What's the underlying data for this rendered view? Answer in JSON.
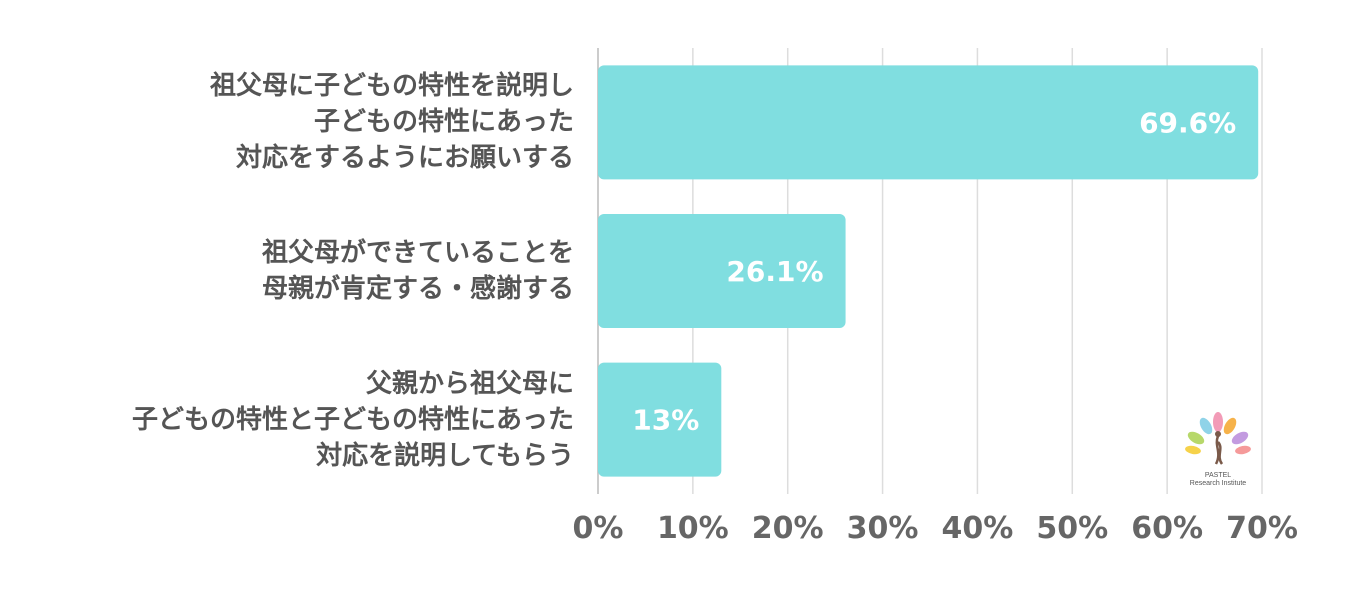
{
  "chart_data": {
    "type": "bar",
    "orientation": "horizontal",
    "categories": [
      [
        "祖父母に子どもの特性を説明し",
        "子どもの特性にあった",
        "対応をするようにお願いする"
      ],
      [
        "祖父母ができていることを",
        "母親が肯定する・感謝する"
      ],
      [
        "父親から祖父母に",
        "子どもの特性と子どもの特性にあった",
        "対応を説明してもらう"
      ]
    ],
    "values": [
      69.6,
      26.1,
      13
    ],
    "value_labels": [
      "69.6%",
      "26.1%",
      "13%"
    ],
    "xlim": [
      0,
      70
    ],
    "xticks": [
      0,
      10,
      20,
      30,
      40,
      50,
      60,
      70
    ],
    "xtick_labels": [
      "0%",
      "10%",
      "20%",
      "30%",
      "40%",
      "50%",
      "60%",
      "70%"
    ],
    "grid": true,
    "colors": {
      "bar": "#80dee0",
      "grid": "#dddddd",
      "tick": "#666666",
      "value_label": "#ffffff",
      "category": "#555555"
    }
  },
  "logo": {
    "line1": "PASTEL",
    "line2": "Research Institute"
  }
}
